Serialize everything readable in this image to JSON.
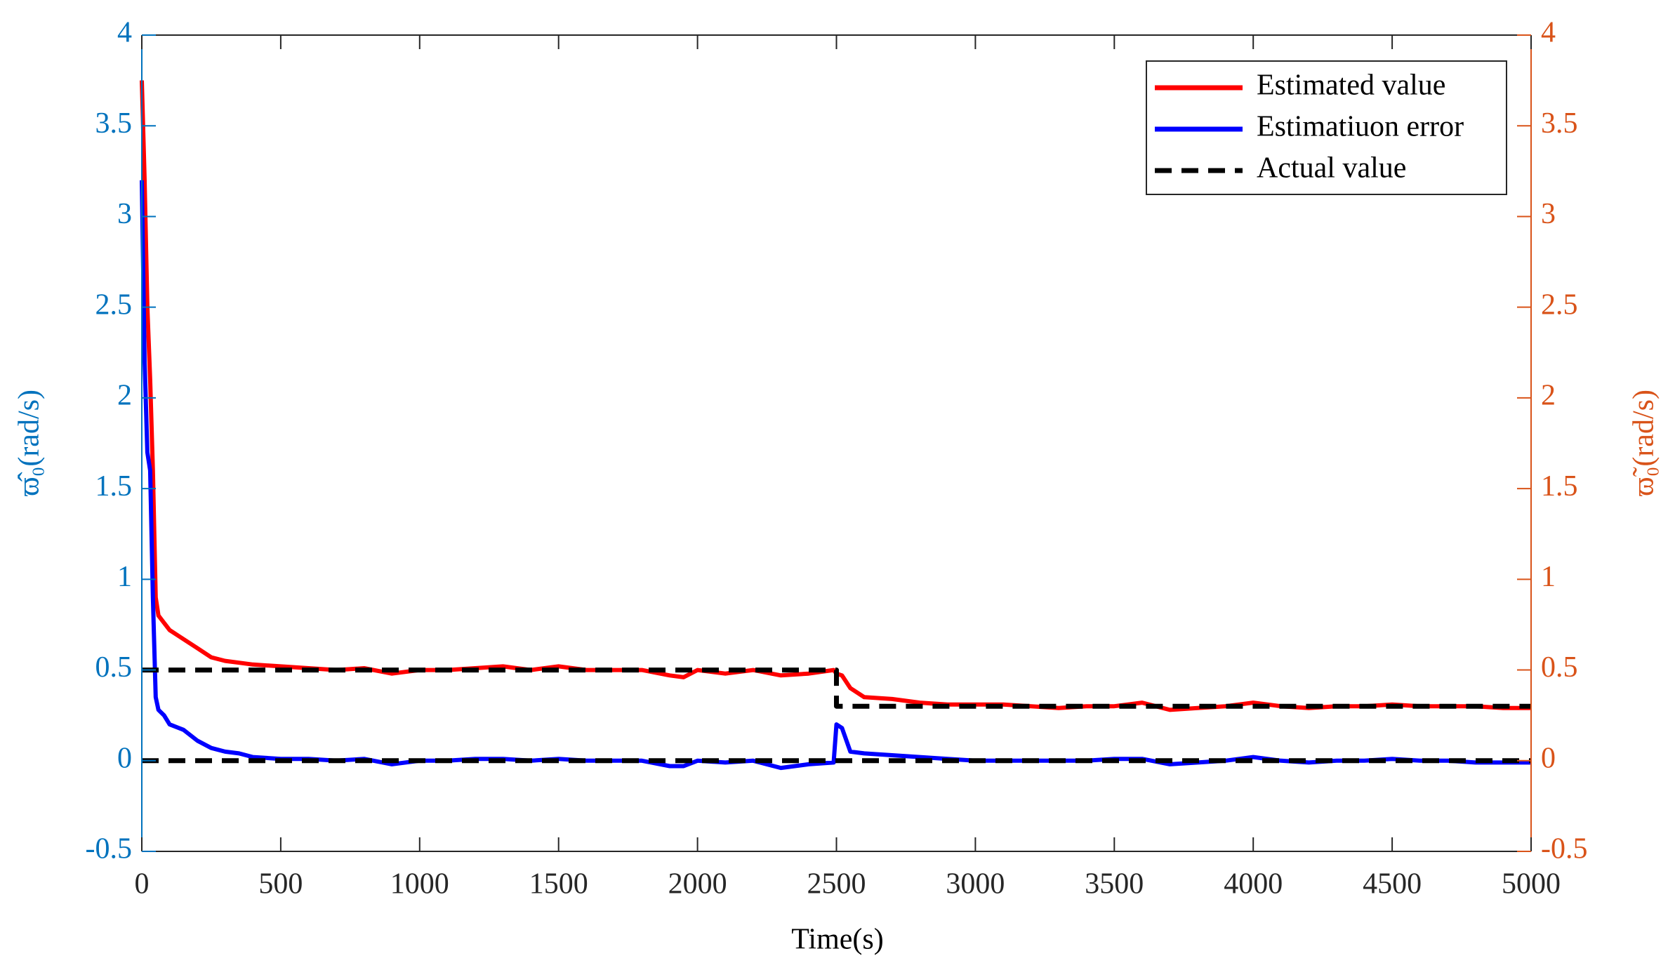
{
  "chart_data": {
    "type": "line",
    "xlabel": "Time(s)",
    "ylabel": "ϖ̂₀(rad/s)",
    "y2label": "ϖ̃₀(rad/s)",
    "xlim": [
      0,
      5000
    ],
    "xticks": [
      0,
      500,
      1000,
      1500,
      2000,
      2500,
      3000,
      3500,
      4000,
      4500,
      5000
    ],
    "ylim": [
      -0.5,
      4
    ],
    "yticks": [
      -0.5,
      0,
      0.5,
      1,
      1.5,
      2,
      2.5,
      3,
      3.5,
      4
    ],
    "y2lim": [
      -0.5,
      4
    ],
    "y2ticks": [
      -0.5,
      0,
      0.5,
      1,
      1.5,
      2,
      2.5,
      3,
      3.5,
      4
    ],
    "ycolor": "#0072bd",
    "y2color": "#d95319",
    "legend": "upper right",
    "x": [
      0,
      10,
      20,
      30,
      40,
      50,
      60,
      80,
      100,
      150,
      200,
      250,
      300,
      350,
      400,
      500,
      600,
      700,
      800,
      900,
      1000,
      1100,
      1200,
      1300,
      1400,
      1500,
      1600,
      1700,
      1800,
      1900,
      1950,
      2000,
      2100,
      2200,
      2300,
      2400,
      2490,
      2500,
      2520,
      2550,
      2600,
      2700,
      2800,
      2900,
      3000,
      3100,
      3200,
      3300,
      3400,
      3500,
      3600,
      3700,
      3800,
      3900,
      4000,
      4100,
      4200,
      4300,
      4400,
      4500,
      4600,
      4700,
      4800,
      4900,
      5000
    ],
    "series": [
      {
        "name": "Estimated value",
        "color": "#ff0000",
        "dash": false,
        "values": [
          3.75,
          3.2,
          2.5,
          2.1,
          1.6,
          0.9,
          0.8,
          0.76,
          0.72,
          0.67,
          0.62,
          0.57,
          0.55,
          0.54,
          0.53,
          0.52,
          0.51,
          0.5,
          0.51,
          0.48,
          0.5,
          0.5,
          0.51,
          0.52,
          0.5,
          0.52,
          0.5,
          0.5,
          0.5,
          0.47,
          0.46,
          0.5,
          0.48,
          0.5,
          0.47,
          0.48,
          0.5,
          0.48,
          0.47,
          0.4,
          0.35,
          0.34,
          0.32,
          0.31,
          0.31,
          0.31,
          0.3,
          0.29,
          0.3,
          0.3,
          0.32,
          0.28,
          0.29,
          0.3,
          0.32,
          0.3,
          0.29,
          0.3,
          0.3,
          0.31,
          0.3,
          0.3,
          0.3,
          0.29,
          0.29
        ]
      },
      {
        "name": "Estimatiuon error",
        "color": "#0000ff",
        "dash": false,
        "values": [
          3.2,
          2.2,
          1.7,
          1.6,
          0.9,
          0.35,
          0.28,
          0.25,
          0.2,
          0.17,
          0.11,
          0.07,
          0.05,
          0.04,
          0.02,
          0.01,
          0.01,
          0,
          0.01,
          -0.02,
          0,
          0,
          0.01,
          0.01,
          0,
          0.01,
          0,
          0,
          0,
          -0.03,
          -0.03,
          0,
          -0.01,
          0,
          -0.04,
          -0.02,
          -0.01,
          0.2,
          0.18,
          0.05,
          0.04,
          0.03,
          0.02,
          0.01,
          0,
          0,
          0,
          0,
          0,
          0.01,
          0.01,
          -0.02,
          -0.01,
          0,
          0.02,
          0,
          -0.01,
          0,
          0,
          0.01,
          0,
          0,
          -0.01,
          -0.01,
          -0.01
        ]
      },
      {
        "name": "Actual value",
        "color": "#000000",
        "dash": true,
        "x": [
          0,
          2500,
          2500,
          5000,
          5000,
          0,
          5000
        ],
        "values": [
          0.5,
          0.5,
          0.3,
          0.3,
          null,
          0,
          0
        ]
      }
    ]
  }
}
